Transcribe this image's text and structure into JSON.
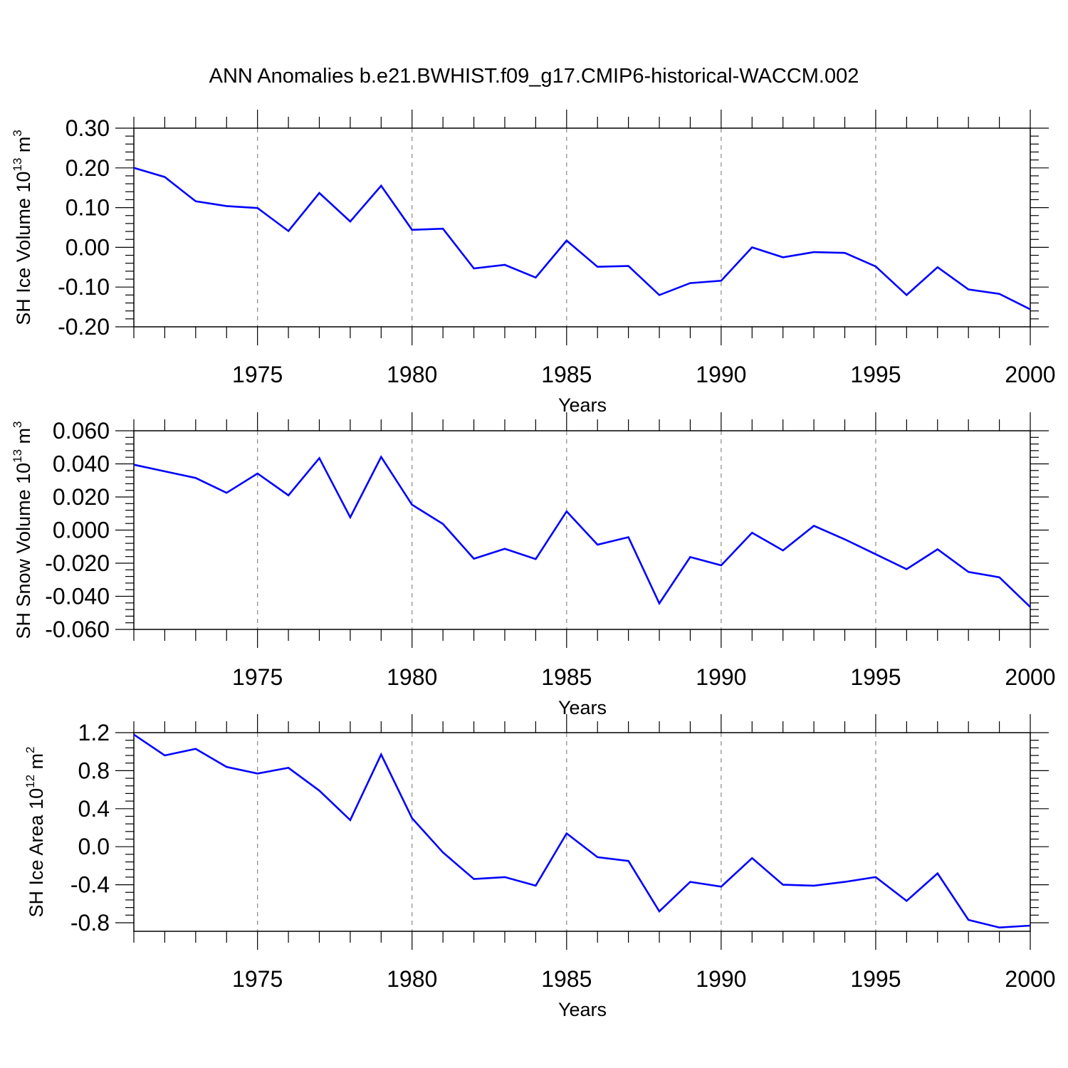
{
  "figure": {
    "title": "ANN Anomalies b.e21.BWHIST.f09_g17.CMIP6-historical-WACCM.002"
  },
  "colors": {
    "line": "#0000ff",
    "axis": "#000000",
    "grid": "#888888"
  },
  "chart_data": [
    {
      "type": "line",
      "ylabel": {
        "text": "SH Ice Volume 10",
        "sup1": "13",
        "unit": " m",
        "sup2": "3"
      },
      "xlabel": "Years",
      "xlim": [
        1971,
        2000
      ],
      "ylim": [
        -0.2,
        0.3
      ],
      "yticks": [
        0.3,
        0.2,
        0.1,
        0.0,
        -0.1,
        -0.2
      ],
      "yticklabels": [
        "0.30",
        "0.20",
        "0.10",
        "0.00",
        "-0.10",
        "-0.20"
      ],
      "xticks": [
        1975,
        1980,
        1985,
        1990,
        1995,
        2000
      ],
      "xticklabels": [
        "1975",
        "1980",
        "1985",
        "1990",
        "1995",
        "2000"
      ],
      "grid_x": true,
      "series": [
        {
          "x": [
            1971,
            1972,
            1973,
            1974,
            1975,
            1976,
            1977,
            1978,
            1979,
            1980,
            1981,
            1982,
            1983,
            1984,
            1985,
            1986,
            1987,
            1988,
            1989,
            1990,
            1991,
            1992,
            1993,
            1994,
            1995,
            1996,
            1997,
            1998,
            1999,
            2000
          ],
          "values": [
            0.2,
            0.177,
            0.116,
            0.104,
            0.099,
            0.041,
            0.137,
            0.065,
            0.155,
            0.044,
            0.047,
            -0.053,
            -0.044,
            -0.076,
            0.017,
            -0.049,
            -0.047,
            -0.12,
            -0.09,
            -0.084,
            0.0,
            -0.025,
            -0.012,
            -0.014,
            -0.048,
            -0.12,
            -0.05,
            -0.106,
            -0.117,
            -0.156
          ]
        }
      ]
    },
    {
      "type": "line",
      "ylabel": {
        "text": "SH Snow Volume 10",
        "sup1": "13",
        "unit": " m",
        "sup2": "3"
      },
      "xlabel": "Years",
      "xlim": [
        1971,
        2000
      ],
      "ylim": [
        -0.06,
        0.06
      ],
      "yticks": [
        0.06,
        0.04,
        0.02,
        0.0,
        -0.02,
        -0.04,
        -0.06
      ],
      "yticklabels": [
        "0.060",
        "0.040",
        "0.020",
        "0.000",
        "-0.020",
        "-0.040",
        "-0.060"
      ],
      "xticks": [
        1975,
        1980,
        1985,
        1990,
        1995,
        2000
      ],
      "xticklabels": [
        "1975",
        "1980",
        "1985",
        "1990",
        "1995",
        "2000"
      ],
      "grid_x": true,
      "series": [
        {
          "x": [
            1971,
            1972,
            1973,
            1974,
            1975,
            1976,
            1977,
            1978,
            1979,
            1980,
            1981,
            1982,
            1983,
            1984,
            1985,
            1986,
            1987,
            1988,
            1989,
            1990,
            1991,
            1992,
            1993,
            1994,
            1995,
            1996,
            1997,
            1998,
            1999,
            2000
          ],
          "values": [
            0.0395,
            0.0355,
            0.0315,
            0.0225,
            0.0342,
            0.021,
            0.0435,
            0.0077,
            0.0442,
            0.0153,
            0.0037,
            -0.0173,
            -0.0113,
            -0.0175,
            0.0113,
            -0.0088,
            -0.0043,
            -0.0443,
            -0.0163,
            -0.0213,
            -0.0016,
            -0.0123,
            0.0026,
            -0.0056,
            -0.0146,
            -0.0236,
            -0.0116,
            -0.0253,
            -0.0285,
            -0.0465
          ]
        }
      ]
    },
    {
      "type": "line",
      "ylabel": {
        "text": "SH Ice Area 10",
        "sup1": "12",
        "unit": " m",
        "sup2": "2"
      },
      "xlabel": "Years",
      "xlim": [
        1971,
        2000
      ],
      "ylim": [
        -0.89,
        1.2
      ],
      "yticks": [
        1.2,
        0.8,
        0.4,
        0.0,
        -0.4,
        -0.8
      ],
      "yticklabels": [
        "1.2",
        "0.8",
        "0.4",
        "0.0",
        "-0.4",
        "-0.8"
      ],
      "xticks": [
        1975,
        1980,
        1985,
        1990,
        1995,
        2000
      ],
      "xticklabels": [
        "1975",
        "1980",
        "1985",
        "1990",
        "1995",
        "2000"
      ],
      "grid_x": true,
      "series": [
        {
          "x": [
            1971,
            1972,
            1973,
            1974,
            1975,
            1976,
            1977,
            1978,
            1979,
            1980,
            1981,
            1982,
            1983,
            1984,
            1985,
            1986,
            1987,
            1988,
            1989,
            1990,
            1991,
            1992,
            1993,
            1994,
            1995,
            1996,
            1997,
            1998,
            1999,
            2000
          ],
          "values": [
            1.18,
            0.96,
            1.03,
            0.84,
            0.77,
            0.83,
            0.59,
            0.28,
            0.97,
            0.3,
            -0.06,
            -0.34,
            -0.32,
            -0.41,
            0.14,
            -0.11,
            -0.15,
            -0.68,
            -0.37,
            -0.42,
            -0.12,
            -0.4,
            -0.41,
            -0.37,
            -0.32,
            -0.57,
            -0.28,
            -0.77,
            -0.85,
            -0.83
          ]
        }
      ]
    }
  ]
}
